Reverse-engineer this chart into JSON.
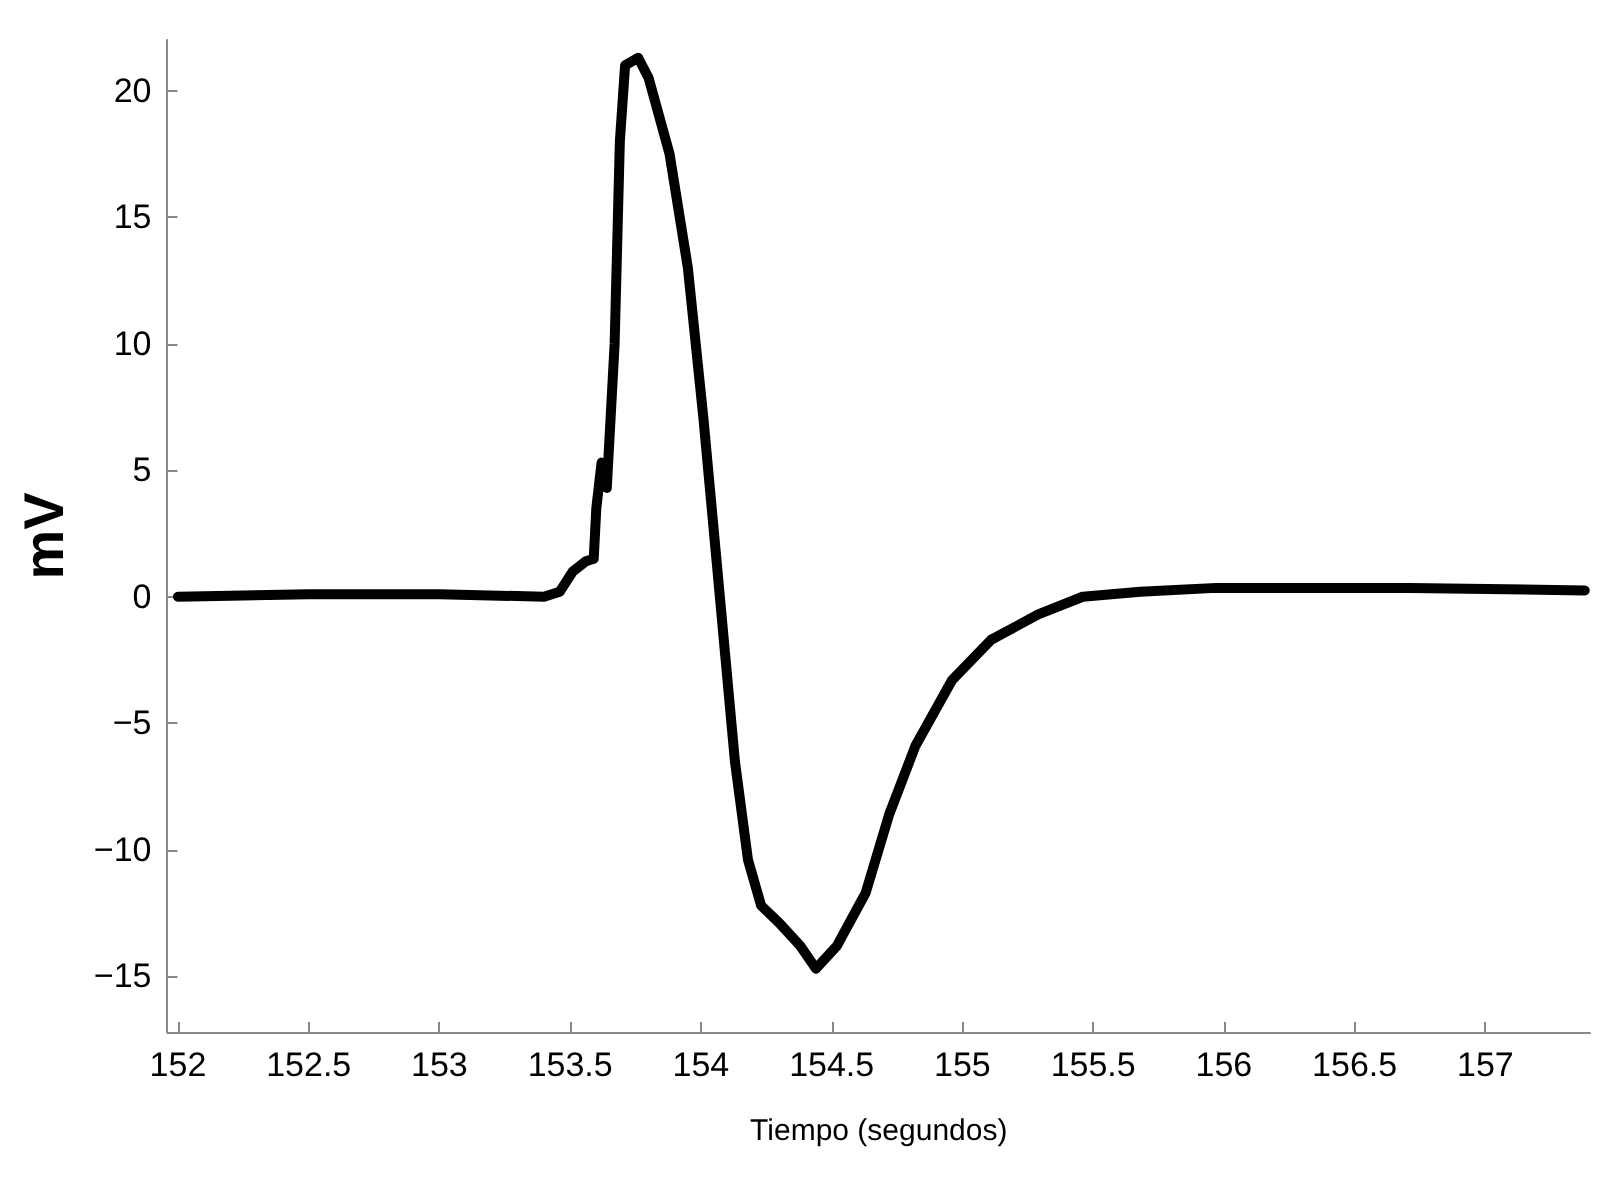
{
  "chart_data": {
    "type": "line",
    "xlabel": "Tiempo (segundos)",
    "ylabel": "mV",
    "xlim": [
      151.96,
      157.4
    ],
    "xticks": [
      152,
      152.5,
      153,
      153.5,
      154,
      154.5,
      155,
      155.5,
      156,
      156.5,
      157
    ],
    "ylim": [
      -17.2,
      22
    ],
    "yticks": [
      -15,
      -10,
      -5,
      0,
      5,
      10,
      15,
      20
    ],
    "grid": false,
    "marker": "none",
    "line_style": "solid",
    "series": [
      {
        "color": "#000000",
        "x": [
          152,
          152.5,
          153,
          153.4,
          153.46,
          153.51,
          153.56,
          153.59,
          153.6,
          153.62,
          153.64,
          153.67,
          153.69,
          153.71,
          153.76,
          153.8,
          153.88,
          153.95,
          154.01,
          154.06,
          154.13,
          154.18,
          154.23,
          154.3,
          154.38,
          154.44,
          154.52,
          154.63,
          154.72,
          154.82,
          154.96,
          155.11,
          155.29,
          155.46,
          155.68,
          155.97,
          156.71,
          157.38
        ],
        "values": [
          0,
          0.1,
          0.1,
          0,
          0.2,
          1,
          1.4,
          1.5,
          3.5,
          5.3,
          4.3,
          10,
          18,
          21,
          21.3,
          20.5,
          17.5,
          13,
          7,
          1.4,
          -6.5,
          -10.4,
          -12.2,
          -12.9,
          -13.8,
          -14.7,
          -13.8,
          -11.7,
          -8.6,
          -5.9,
          -3.3,
          -1.7,
          -0.7,
          0,
          0.2,
          0.35,
          0.35,
          0.25
        ]
      }
    ]
  }
}
